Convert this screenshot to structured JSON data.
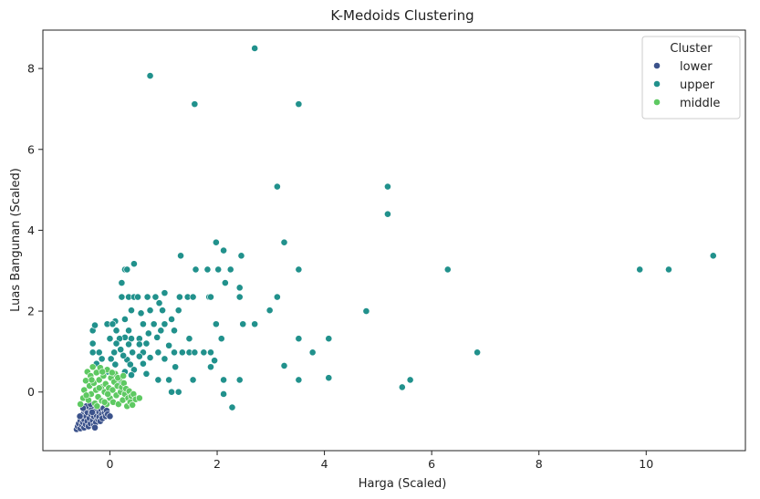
{
  "chart_data": {
    "type": "scatter",
    "title": "K-Medoids Clustering",
    "xlabel": "Harga (Scaled)",
    "ylabel": "Luas Bangunan (Scaled)",
    "xlim": [
      -1.25,
      11.85
    ],
    "ylim": [
      -1.45,
      8.95
    ],
    "xticks": [
      0,
      2,
      4,
      6,
      8,
      10
    ],
    "yticks": [
      0,
      2,
      4,
      6,
      8
    ],
    "grid": false,
    "legend": {
      "title": "Cluster",
      "placement": "top-right"
    },
    "series": [
      {
        "name": "lower",
        "color": "#3b528b",
        "points": [
          [
            -0.62,
            -0.92
          ],
          [
            -0.6,
            -0.85
          ],
          [
            -0.58,
            -0.78
          ],
          [
            -0.55,
            -0.9
          ],
          [
            -0.55,
            -0.7
          ],
          [
            -0.52,
            -0.82
          ],
          [
            -0.52,
            -0.62
          ],
          [
            -0.5,
            -0.75
          ],
          [
            -0.5,
            -0.55
          ],
          [
            -0.48,
            -0.88
          ],
          [
            -0.48,
            -0.68
          ],
          [
            -0.46,
            -0.45
          ],
          [
            -0.45,
            -0.8
          ],
          [
            -0.44,
            -0.6
          ],
          [
            -0.42,
            -0.72
          ],
          [
            -0.42,
            -0.5
          ],
          [
            -0.4,
            -0.85
          ],
          [
            -0.4,
            -0.38
          ],
          [
            -0.38,
            -0.65
          ],
          [
            -0.36,
            -0.78
          ],
          [
            -0.35,
            -0.55
          ],
          [
            -0.34,
            -0.42
          ],
          [
            -0.32,
            -0.7
          ],
          [
            -0.3,
            -0.6
          ],
          [
            -0.3,
            -0.82
          ],
          [
            -0.28,
            -0.48
          ],
          [
            -0.26,
            -0.75
          ],
          [
            -0.25,
            -0.58
          ],
          [
            -0.24,
            -0.35
          ],
          [
            -0.22,
            -0.68
          ],
          [
            -0.2,
            -0.5
          ],
          [
            -0.2,
            -0.62
          ],
          [
            -0.18,
            -0.72
          ],
          [
            -0.16,
            -0.45
          ],
          [
            -0.15,
            -0.55
          ],
          [
            -0.14,
            -0.65
          ],
          [
            -0.12,
            -0.4
          ],
          [
            -0.1,
            -0.52
          ],
          [
            -0.08,
            -0.6
          ],
          [
            -0.06,
            -0.46
          ],
          [
            -0.04,
            -0.55
          ],
          [
            0.0,
            -0.6
          ],
          [
            -0.56,
            -0.6
          ],
          [
            -0.44,
            -0.35
          ],
          [
            -0.36,
            -0.3
          ],
          [
            -0.28,
            -0.88
          ],
          [
            -0.5,
            -0.4
          ],
          [
            -0.33,
            -0.5
          ]
        ]
      },
      {
        "name": "upper",
        "color": "#21918c",
        "points": [
          [
            2.7,
            8.5
          ],
          [
            0.75,
            7.82
          ],
          [
            1.58,
            7.12
          ],
          [
            3.52,
            7.12
          ],
          [
            3.12,
            5.08
          ],
          [
            5.18,
            5.08
          ],
          [
            5.18,
            4.4
          ],
          [
            3.25,
            3.7
          ],
          [
            1.98,
            3.7
          ],
          [
            2.12,
            3.5
          ],
          [
            1.32,
            3.37
          ],
          [
            2.45,
            3.37
          ],
          [
            11.25,
            3.37
          ],
          [
            0.45,
            3.17
          ],
          [
            0.28,
            3.03
          ],
          [
            0.32,
            3.03
          ],
          [
            1.6,
            3.03
          ],
          [
            1.82,
            3.03
          ],
          [
            2.02,
            3.03
          ],
          [
            2.25,
            3.03
          ],
          [
            3.52,
            3.03
          ],
          [
            6.3,
            3.03
          ],
          [
            9.88,
            3.03
          ],
          [
            10.42,
            3.03
          ],
          [
            0.22,
            2.7
          ],
          [
            2.15,
            2.7
          ],
          [
            2.42,
            2.58
          ],
          [
            0.22,
            2.35
          ],
          [
            0.35,
            2.35
          ],
          [
            0.45,
            2.35
          ],
          [
            0.52,
            2.35
          ],
          [
            0.7,
            2.35
          ],
          [
            0.85,
            2.35
          ],
          [
            1.3,
            2.35
          ],
          [
            1.45,
            2.35
          ],
          [
            1.55,
            2.35
          ],
          [
            1.85,
            2.35
          ],
          [
            1.88,
            2.35
          ],
          [
            2.42,
            2.35
          ],
          [
            3.12,
            2.35
          ],
          [
            1.02,
            2.45
          ],
          [
            0.92,
            2.2
          ],
          [
            0.4,
            2.02
          ],
          [
            0.58,
            1.95
          ],
          [
            0.75,
            2.02
          ],
          [
            0.98,
            2.02
          ],
          [
            1.28,
            2.02
          ],
          [
            2.98,
            2.02
          ],
          [
            4.78,
            2.0
          ],
          [
            1.15,
            1.8
          ],
          [
            0.28,
            1.8
          ],
          [
            0.1,
            1.75
          ],
          [
            -0.05,
            1.68
          ],
          [
            0.05,
            1.68
          ],
          [
            0.62,
            1.68
          ],
          [
            0.82,
            1.68
          ],
          [
            1.02,
            1.68
          ],
          [
            1.98,
            1.68
          ],
          [
            2.48,
            1.68
          ],
          [
            2.7,
            1.68
          ],
          [
            -0.32,
            1.52
          ],
          [
            -0.28,
            1.65
          ],
          [
            0.12,
            1.52
          ],
          [
            0.35,
            1.52
          ],
          [
            0.72,
            1.45
          ],
          [
            0.95,
            1.52
          ],
          [
            1.2,
            1.52
          ],
          [
            0.28,
            1.35
          ],
          [
            0.0,
            1.32
          ],
          [
            0.18,
            1.32
          ],
          [
            0.4,
            1.32
          ],
          [
            0.55,
            1.32
          ],
          [
            0.88,
            1.35
          ],
          [
            1.48,
            1.32
          ],
          [
            2.08,
            1.32
          ],
          [
            3.52,
            1.32
          ],
          [
            4.08,
            1.32
          ],
          [
            -0.32,
            1.2
          ],
          [
            0.12,
            1.2
          ],
          [
            0.35,
            1.18
          ],
          [
            0.55,
            1.18
          ],
          [
            0.68,
            1.2
          ],
          [
            1.1,
            1.15
          ],
          [
            0.2,
            1.05
          ],
          [
            -0.32,
            0.98
          ],
          [
            -0.2,
            0.98
          ],
          [
            0.08,
            0.98
          ],
          [
            0.42,
            0.98
          ],
          [
            0.62,
            0.98
          ],
          [
            0.9,
            0.98
          ],
          [
            1.2,
            0.98
          ],
          [
            1.35,
            0.98
          ],
          [
            1.48,
            0.98
          ],
          [
            1.58,
            0.98
          ],
          [
            1.75,
            0.98
          ],
          [
            1.88,
            0.98
          ],
          [
            3.78,
            0.98
          ],
          [
            6.85,
            0.98
          ],
          [
            0.55,
            0.88
          ],
          [
            0.75,
            0.85
          ],
          [
            -0.15,
            0.82
          ],
          [
            0.02,
            0.82
          ],
          [
            0.32,
            0.8
          ],
          [
            1.02,
            0.82
          ],
          [
            1.95,
            0.78
          ],
          [
            -0.25,
            0.7
          ],
          [
            0.1,
            0.68
          ],
          [
            0.38,
            0.68
          ],
          [
            0.62,
            0.7
          ],
          [
            1.22,
            0.62
          ],
          [
            1.88,
            0.62
          ],
          [
            3.25,
            0.65
          ],
          [
            -0.15,
            0.52
          ],
          [
            0.28,
            0.5
          ],
          [
            0.45,
            0.55
          ],
          [
            0.68,
            0.45
          ],
          [
            0.4,
            0.42
          ],
          [
            0.9,
            0.3
          ],
          [
            1.1,
            0.3
          ],
          [
            1.55,
            0.3
          ],
          [
            2.12,
            0.3
          ],
          [
            2.42,
            0.3
          ],
          [
            3.52,
            0.3
          ],
          [
            4.08,
            0.35
          ],
          [
            5.6,
            0.3
          ],
          [
            5.45,
            0.12
          ],
          [
            1.15,
            0.0
          ],
          [
            1.28,
            0.0
          ],
          [
            2.12,
            -0.05
          ],
          [
            2.28,
            -0.38
          ],
          [
            0.15,
            0.25
          ],
          [
            -0.05,
            0.5
          ],
          [
            0.25,
            0.9
          ]
        ]
      },
      {
        "name": "middle",
        "color": "#5ec962",
        "points": [
          [
            -0.55,
            -0.3
          ],
          [
            -0.5,
            -0.15
          ],
          [
            -0.48,
            0.05
          ],
          [
            -0.45,
            0.28
          ],
          [
            -0.42,
            0.5
          ],
          [
            -0.4,
            -0.2
          ],
          [
            -0.38,
            0.15
          ],
          [
            -0.36,
            0.4
          ],
          [
            -0.35,
            -0.05
          ],
          [
            -0.32,
            0.62
          ],
          [
            -0.3,
            0.22
          ],
          [
            -0.28,
            -0.28
          ],
          [
            -0.26,
            0.05
          ],
          [
            -0.25,
            0.48
          ],
          [
            -0.22,
            -0.12
          ],
          [
            -0.2,
            0.3
          ],
          [
            -0.18,
            0.6
          ],
          [
            -0.16,
            0.12
          ],
          [
            -0.15,
            -0.22
          ],
          [
            -0.12,
            0.4
          ],
          [
            -0.1,
            0.0
          ],
          [
            -0.08,
            0.2
          ],
          [
            -0.06,
            -0.3
          ],
          [
            -0.05,
            0.55
          ],
          [
            -0.02,
            0.1
          ],
          [
            0.0,
            -0.15
          ],
          [
            0.02,
            0.35
          ],
          [
            0.05,
            0.05
          ],
          [
            0.06,
            -0.25
          ],
          [
            0.08,
            0.25
          ],
          [
            0.1,
            0.45
          ],
          [
            0.12,
            -0.08
          ],
          [
            0.14,
            0.15
          ],
          [
            0.16,
            -0.3
          ],
          [
            0.18,
            0.32
          ],
          [
            0.2,
            0.0
          ],
          [
            0.22,
            0.12
          ],
          [
            0.24,
            -0.2
          ],
          [
            0.26,
            0.22
          ],
          [
            0.28,
            -0.05
          ],
          [
            0.3,
            0.08
          ],
          [
            0.32,
            -0.35
          ],
          [
            0.34,
            -0.15
          ],
          [
            0.36,
            0.02
          ],
          [
            0.38,
            -0.25
          ],
          [
            0.4,
            -0.1
          ],
          [
            0.42,
            -0.32
          ],
          [
            0.44,
            -0.05
          ],
          [
            0.48,
            -0.18
          ],
          [
            0.55,
            -0.15
          ],
          [
            -0.44,
            -0.08
          ],
          [
            -0.34,
            0.3
          ],
          [
            -0.24,
            -0.35
          ],
          [
            -0.14,
            0.5
          ],
          [
            -0.04,
            -0.05
          ],
          [
            0.04,
            0.48
          ],
          [
            0.15,
            0.35
          ],
          [
            0.25,
            0.4
          ],
          [
            -0.2,
            0.1
          ],
          [
            -0.1,
            -0.25
          ]
        ]
      }
    ]
  }
}
